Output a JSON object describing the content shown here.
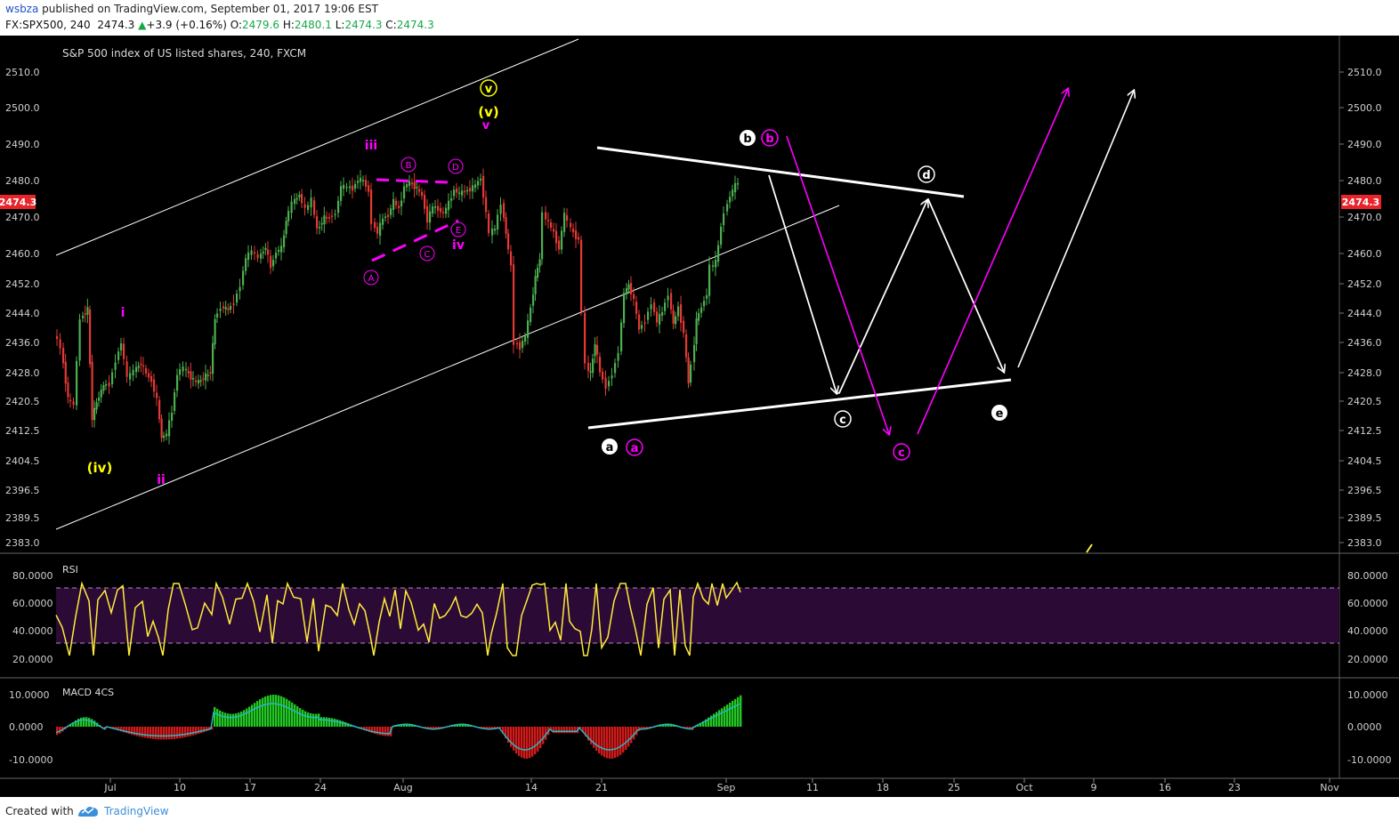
{
  "header": {
    "publisher": "wsbza",
    "published_text": "published on TradingView.com, September 01, 2017 19:06 EST",
    "symbol": "FX:SPX500, 240",
    "last": "2474.3",
    "change": "+3.9 (+0.16%)",
    "open_label": "O:",
    "open": "2479.6",
    "high_label": "H:",
    "high": "2480.1",
    "low_label": "L:",
    "low": "2474.3",
    "close_label": "C:",
    "close": "2474.3"
  },
  "chart": {
    "title": "S&P 500 index of US listed shares, 240, FXCM",
    "price_badge": "2474.3",
    "price_ticks": [
      "2510.0",
      "2500.0",
      "2490.0",
      "2480.0",
      "2470.0",
      "2460.0",
      "2452.0",
      "2444.0",
      "2436.0",
      "2428.0",
      "2420.5",
      "2412.5",
      "2404.5",
      "2396.5",
      "2389.5",
      "2383.0"
    ],
    "x_ticks": [
      "Jul",
      "10",
      "17",
      "24",
      "Aug",
      "14",
      "21",
      "Sep",
      "11",
      "18",
      "25",
      "Oct",
      "9",
      "16",
      "23",
      "Nov"
    ],
    "rsi_label": "RSI",
    "rsi_ticks": [
      "80.0000",
      "60.0000",
      "40.0000",
      "20.0000"
    ],
    "macd_label": "MACD 4CS",
    "macd_ticks": [
      "10.0000",
      "0.0000",
      "-10.0000"
    ],
    "annotations": {
      "iv_paren": "(iv)",
      "ii": "ii",
      "i": "i",
      "iii": "iii",
      "v_circ": "v",
      "v_paren": "(v)",
      "v_small": "v",
      "iv": "iv",
      "A": "A",
      "B": "B",
      "C": "C",
      "D": "D",
      "E": "E",
      "a": "a",
      "b": "b",
      "c": "c",
      "d": "d",
      "e": "e"
    },
    "colors": {
      "up": "#4caf50",
      "down": "#e53935",
      "accent": "#ff00ff",
      "wave_yellow": "#ffff00",
      "rsi": "#ffeb3b",
      "badge": "#e8232a"
    }
  },
  "footer": {
    "created_with": "Created with",
    "brand": "TradingView"
  }
}
